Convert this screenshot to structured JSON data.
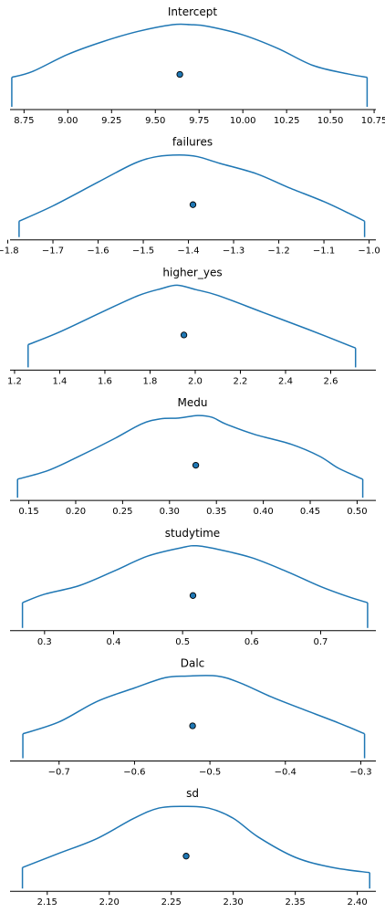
{
  "chart_data": [
    {
      "type": "density",
      "title": "Intercept",
      "xlim": [
        8.67,
        10.76
      ],
      "data_range": [
        8.68,
        10.71
      ],
      "ticks": [
        8.75,
        9.0,
        9.25,
        9.5,
        9.75,
        10.0,
        10.25,
        10.5,
        10.75
      ],
      "tick_labels": [
        "8.75",
        "9.00",
        "9.25",
        "9.50",
        "9.75",
        "10.00",
        "10.25",
        "10.50",
        "10.75"
      ],
      "point_estimate": 9.64,
      "density": {
        "x": [
          8.68,
          8.8,
          9.0,
          9.2,
          9.4,
          9.6,
          9.7,
          9.8,
          10.0,
          10.2,
          10.4,
          10.6,
          10.71
        ],
        "y": [
          0.38,
          0.45,
          0.65,
          0.8,
          0.92,
          1.0,
          1.0,
          0.98,
          0.88,
          0.72,
          0.52,
          0.42,
          0.38
        ]
      },
      "line_color": "#1f77b4"
    },
    {
      "type": "density",
      "title": "failures",
      "xlim": [
        -1.795,
        -0.985
      ],
      "data_range": [
        -1.775,
        -1.01
      ],
      "ticks": [
        -1.8,
        -1.7,
        -1.6,
        -1.5,
        -1.4,
        -1.3,
        -1.2,
        -1.1,
        -1.0
      ],
      "tick_labels": [
        "−1.8",
        "−1.7",
        "−1.6",
        "−1.5",
        "−1.4",
        "−1.3",
        "−1.2",
        "−1.1",
        "−1.0"
      ],
      "point_estimate": -1.39,
      "density": {
        "x": [
          -1.775,
          -1.7,
          -1.6,
          -1.52,
          -1.47,
          -1.42,
          -1.38,
          -1.33,
          -1.25,
          -1.18,
          -1.1,
          -1.04,
          -1.01
        ],
        "y": [
          0.22,
          0.4,
          0.68,
          0.9,
          0.98,
          1.0,
          0.98,
          0.9,
          0.78,
          0.62,
          0.45,
          0.3,
          0.22
        ]
      },
      "line_color": "#1f77b4"
    },
    {
      "type": "density",
      "title": "higher_yes",
      "xlim": [
        1.18,
        2.8
      ],
      "data_range": [
        1.26,
        2.71
      ],
      "ticks": [
        1.2,
        1.4,
        1.6,
        1.8,
        2.0,
        2.2,
        2.4,
        2.6
      ],
      "tick_labels": [
        "1.2",
        "1.4",
        "1.6",
        "1.8",
        "2.0",
        "2.2",
        "2.4",
        "2.6"
      ],
      "point_estimate": 1.95,
      "density": {
        "x": [
          1.26,
          1.4,
          1.6,
          1.75,
          1.85,
          1.92,
          2.0,
          2.1,
          2.3,
          2.5,
          2.71
        ],
        "y": [
          0.3,
          0.45,
          0.7,
          0.88,
          0.96,
          1.0,
          0.95,
          0.88,
          0.68,
          0.48,
          0.26
        ]
      },
      "line_color": "#1f77b4"
    },
    {
      "type": "density",
      "title": "Medu",
      "xlim": [
        0.13,
        0.52
      ],
      "data_range": [
        0.138,
        0.506
      ],
      "ticks": [
        0.15,
        0.2,
        0.25,
        0.3,
        0.35,
        0.4,
        0.45,
        0.5
      ],
      "tick_labels": [
        "0.15",
        "0.20",
        "0.25",
        "0.30",
        "0.35",
        "0.40",
        "0.45",
        "0.50"
      ],
      "point_estimate": 0.328,
      "density": {
        "x": [
          0.138,
          0.17,
          0.2,
          0.24,
          0.27,
          0.29,
          0.31,
          0.33,
          0.345,
          0.36,
          0.39,
          0.43,
          0.46,
          0.48,
          0.506
        ],
        "y": [
          0.25,
          0.35,
          0.5,
          0.72,
          0.9,
          0.96,
          0.97,
          1.0,
          0.98,
          0.9,
          0.78,
          0.66,
          0.52,
          0.38,
          0.25
        ]
      },
      "line_color": "#1f77b4"
    },
    {
      "type": "density",
      "title": "studytime",
      "xlim": [
        0.25,
        0.78
      ],
      "data_range": [
        0.268,
        0.768
      ],
      "ticks": [
        0.3,
        0.4,
        0.5,
        0.6,
        0.7
      ],
      "tick_labels": [
        "0.3",
        "0.4",
        "0.5",
        "0.6",
        "0.7"
      ],
      "point_estimate": 0.515,
      "density": {
        "x": [
          0.268,
          0.3,
          0.35,
          0.4,
          0.45,
          0.5,
          0.52,
          0.55,
          0.6,
          0.65,
          0.7,
          0.74,
          0.768
        ],
        "y": [
          0.33,
          0.43,
          0.53,
          0.7,
          0.88,
          0.98,
          1.0,
          0.96,
          0.86,
          0.7,
          0.52,
          0.4,
          0.33
        ]
      },
      "line_color": "#1f77b4"
    },
    {
      "type": "density",
      "title": "Dalc",
      "xlim": [
        -0.765,
        -0.28
      ],
      "data_range": [
        -0.748,
        -0.295
      ],
      "ticks": [
        -0.7,
        -0.6,
        -0.5,
        -0.4,
        -0.3
      ],
      "tick_labels": [
        "−0.7",
        "−0.6",
        "−0.5",
        "−0.4",
        "−0.3"
      ],
      "point_estimate": -0.523,
      "density": {
        "x": [
          -0.748,
          -0.7,
          -0.65,
          -0.6,
          -0.56,
          -0.53,
          -0.49,
          -0.46,
          -0.42,
          -0.38,
          -0.33,
          -0.295
        ],
        "y": [
          0.32,
          0.46,
          0.7,
          0.86,
          0.98,
          1.0,
          1.0,
          0.92,
          0.76,
          0.62,
          0.45,
          0.32
        ]
      },
      "line_color": "#1f77b4"
    },
    {
      "type": "density",
      "title": "sd",
      "xlim": [
        2.12,
        2.415
      ],
      "data_range": [
        2.13,
        2.41
      ],
      "ticks": [
        2.15,
        2.2,
        2.25,
        2.3,
        2.35,
        2.4
      ],
      "tick_labels": [
        "2.15",
        "2.20",
        "2.25",
        "2.30",
        "2.35",
        "2.40"
      ],
      "point_estimate": 2.262,
      "density": {
        "x": [
          2.13,
          2.16,
          2.19,
          2.22,
          2.24,
          2.26,
          2.28,
          2.3,
          2.32,
          2.35,
          2.38,
          2.41
        ],
        "y": [
          0.28,
          0.45,
          0.62,
          0.86,
          0.98,
          1.0,
          0.98,
          0.86,
          0.64,
          0.4,
          0.28,
          0.22
        ]
      },
      "line_color": "#1f77b4"
    }
  ]
}
